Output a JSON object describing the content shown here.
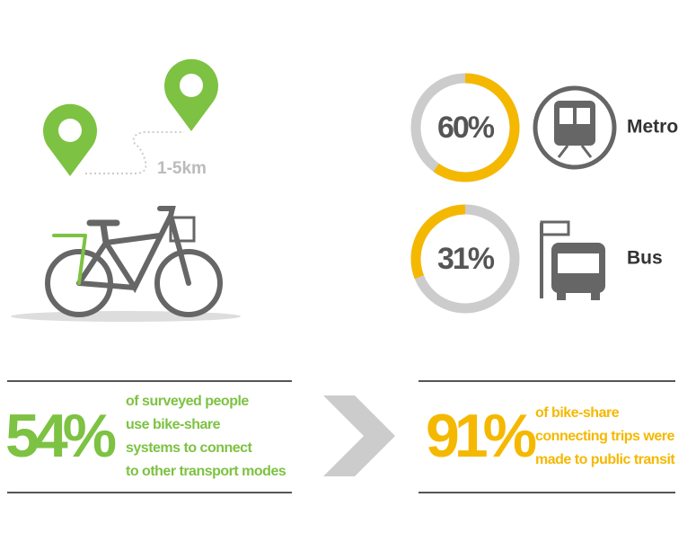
{
  "route": {
    "distance": "1-5km"
  },
  "donuts": [
    {
      "value": 60,
      "label": "60%",
      "mode": "Metro"
    },
    {
      "value": 31,
      "label": "31%",
      "mode": "Bus"
    }
  ],
  "stats": [
    {
      "value": "54%",
      "lines": [
        "of surveyed people",
        "use bike-share",
        "systems to connect",
        "to other transport modes"
      ]
    },
    {
      "value": "91%",
      "lines": [
        "of bike-share",
        "connecting trips were",
        "made to public transit"
      ]
    }
  ]
}
